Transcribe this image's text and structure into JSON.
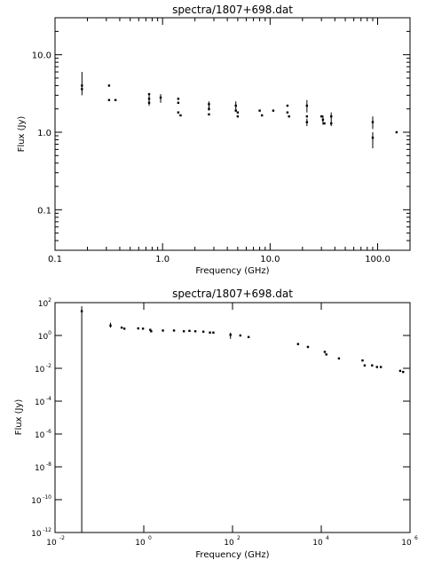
{
  "chart_data": [
    {
      "type": "scatter",
      "title": "spectra/1807+698.dat",
      "xlabel": "Frequency (GHz)",
      "ylabel": "Flux (Jy)",
      "xscale": "log",
      "yscale": "log",
      "xlim": [
        0.1,
        200
      ],
      "ylim": [
        0.03,
        30
      ],
      "x_ticks": [
        0.1,
        1,
        10,
        100
      ],
      "x_tick_labels": [
        "0.1",
        "1.0",
        "10.0",
        "100.0"
      ],
      "y_ticks": [
        0.1,
        1,
        10
      ],
      "y_tick_labels": [
        "0.1",
        "1.0",
        "10.0"
      ],
      "grid": false,
      "points": [
        {
          "x": 0.178,
          "y": 4.0,
          "ylo": 3.0,
          "yhi": 6.0
        },
        {
          "x": 0.178,
          "y": 3.6
        },
        {
          "x": 0.318,
          "y": 4.0
        },
        {
          "x": 0.318,
          "y": 2.6
        },
        {
          "x": 0.365,
          "y": 2.6
        },
        {
          "x": 0.75,
          "y": 3.1
        },
        {
          "x": 0.75,
          "y": 2.7,
          "ylo": 2.2,
          "yhi": 3.0
        },
        {
          "x": 0.75,
          "y": 2.4
        },
        {
          "x": 0.96,
          "y": 2.8,
          "ylo": 2.4,
          "yhi": 3.1
        },
        {
          "x": 1.4,
          "y": 2.7
        },
        {
          "x": 1.4,
          "y": 2.4
        },
        {
          "x": 1.4,
          "y": 1.8
        },
        {
          "x": 1.47,
          "y": 1.65
        },
        {
          "x": 2.7,
          "y": 2.3,
          "ylo": 1.9,
          "yhi": 2.5
        },
        {
          "x": 2.7,
          "y": 2.0
        },
        {
          "x": 2.7,
          "y": 1.7
        },
        {
          "x": 4.8,
          "y": 2.2,
          "ylo": 1.9,
          "yhi": 2.5
        },
        {
          "x": 4.8,
          "y": 1.9
        },
        {
          "x": 5.0,
          "y": 1.8
        },
        {
          "x": 5.0,
          "y": 1.6
        },
        {
          "x": 8.0,
          "y": 1.9
        },
        {
          "x": 8.4,
          "y": 1.65
        },
        {
          "x": 10.7,
          "y": 1.9
        },
        {
          "x": 14.5,
          "y": 2.2
        },
        {
          "x": 14.5,
          "y": 1.8
        },
        {
          "x": 15.0,
          "y": 1.6
        },
        {
          "x": 22.0,
          "y": 2.2,
          "ylo": 1.8,
          "yhi": 2.6
        },
        {
          "x": 22.0,
          "y": 1.6
        },
        {
          "x": 22.0,
          "y": 1.35,
          "ylo": 1.2,
          "yhi": 1.5
        },
        {
          "x": 30.0,
          "y": 1.6
        },
        {
          "x": 31.0,
          "y": 1.45,
          "ylo": 1.25,
          "yhi": 1.65
        },
        {
          "x": 32.0,
          "y": 1.3
        },
        {
          "x": 37.0,
          "y": 1.6,
          "ylo": 1.2,
          "yhi": 1.8
        },
        {
          "x": 37.0,
          "y": 1.3
        },
        {
          "x": 90.0,
          "y": 1.35,
          "ylo": 1.1,
          "yhi": 1.6
        },
        {
          "x": 90.0,
          "y": 0.85,
          "ylo": 0.62,
          "yhi": 1.0
        },
        {
          "x": 150.0,
          "y": 1.0
        }
      ]
    },
    {
      "type": "scatter",
      "title": "spectra/1807+698.dat",
      "xlabel": "Frequency (GHz)",
      "ylabel": "Flux (Jy)",
      "xscale": "log",
      "yscale": "log",
      "xlim": [
        0.01,
        1000000
      ],
      "ylim": [
        1e-12,
        100
      ],
      "x_tick_exponents": [
        -2,
        0,
        2,
        4,
        6
      ],
      "y_tick_exponents": [
        -12,
        -10,
        -8,
        -6,
        -4,
        -2,
        0,
        2
      ],
      "tick_base": "10",
      "grid": false,
      "points": [
        {
          "x": 0.04,
          "y": 30,
          "ylo": 1e-12,
          "yhi": 60
        },
        {
          "x": 0.178,
          "y": 4.0,
          "ylo": 3.0,
          "yhi": 6.0
        },
        {
          "x": 0.318,
          "y": 3.0
        },
        {
          "x": 0.365,
          "y": 2.6
        },
        {
          "x": 0.75,
          "y": 2.7
        },
        {
          "x": 0.96,
          "y": 2.6
        },
        {
          "x": 1.4,
          "y": 2.2
        },
        {
          "x": 1.47,
          "y": 1.8
        },
        {
          "x": 2.7,
          "y": 2.0
        },
        {
          "x": 4.8,
          "y": 2.0
        },
        {
          "x": 8.0,
          "y": 1.8
        },
        {
          "x": 10.7,
          "y": 1.9
        },
        {
          "x": 14.5,
          "y": 1.8
        },
        {
          "x": 22.0,
          "y": 1.7
        },
        {
          "x": 31.0,
          "y": 1.5
        },
        {
          "x": 37.0,
          "y": 1.5
        },
        {
          "x": 90.0,
          "y": 1.1,
          "ylo": 0.62,
          "yhi": 1.5
        },
        {
          "x": 150.0,
          "y": 1.0
        },
        {
          "x": 230.0,
          "y": 0.8
        },
        {
          "x": 3000.0,
          "y": 0.3
        },
        {
          "x": 5000.0,
          "y": 0.2
        },
        {
          "x": 12000.0,
          "y": 0.1
        },
        {
          "x": 13000.0,
          "y": 0.07
        },
        {
          "x": 25000.0,
          "y": 0.04
        },
        {
          "x": 85000.0,
          "y": 0.03
        },
        {
          "x": 95000.0,
          "y": 0.015
        },
        {
          "x": 140000.0,
          "y": 0.015
        },
        {
          "x": 180000.0,
          "y": 0.012
        },
        {
          "x": 220000.0,
          "y": 0.012
        },
        {
          "x": 600000.0,
          "y": 0.007
        },
        {
          "x": 700000.0,
          "y": 0.006
        }
      ]
    }
  ]
}
